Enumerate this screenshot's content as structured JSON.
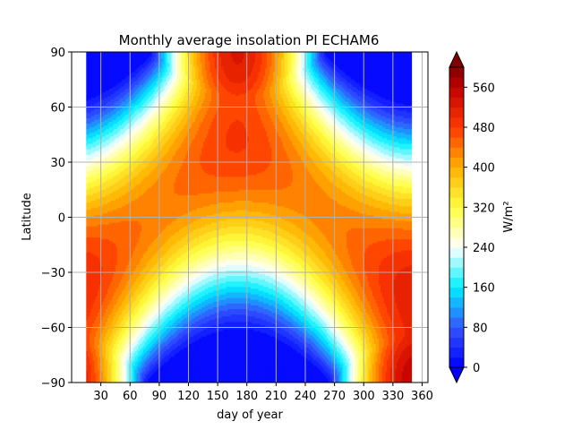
{
  "chart_data": {
    "type": "heatmap",
    "variant": "filled-contour",
    "title": "Monthly average insolation PI ECHAM6",
    "xlabel": "day of year",
    "ylabel": "Latitude",
    "colorbar_label": "W/m²",
    "x_ticks": [
      30,
      60,
      90,
      120,
      150,
      180,
      210,
      240,
      270,
      300,
      330,
      360
    ],
    "y_ticks": [
      -90,
      -60,
      -30,
      0,
      30,
      60,
      90
    ],
    "xlim": [
      0,
      366
    ],
    "ylim": [
      -90,
      90
    ],
    "data_x_range": [
      15,
      349
    ],
    "colorbar_ticks": [
      0,
      80,
      160,
      240,
      320,
      400,
      480,
      560
    ],
    "colorbar_range": [
      0,
      600
    ],
    "level_step": 20,
    "colorbar_extend": "both",
    "grid": true,
    "colormap_stops": [
      {
        "v": 0,
        "c": "#0000ff"
      },
      {
        "v": 80,
        "c": "#3355ff"
      },
      {
        "v": 160,
        "c": "#00f0ff"
      },
      {
        "v": 240,
        "c": "#ffffff"
      },
      {
        "v": 320,
        "c": "#ffff40"
      },
      {
        "v": 400,
        "c": "#ffb000"
      },
      {
        "v": 480,
        "c": "#ff3800"
      },
      {
        "v": 560,
        "c": "#c00000"
      },
      {
        "v": 600,
        "c": "#800000"
      }
    ],
    "series": [
      {
        "x": [
          15,
          46,
          74,
          105,
          135,
          166,
          196,
          227,
          258,
          288,
          319,
          349
        ]
      }
    ]
  }
}
